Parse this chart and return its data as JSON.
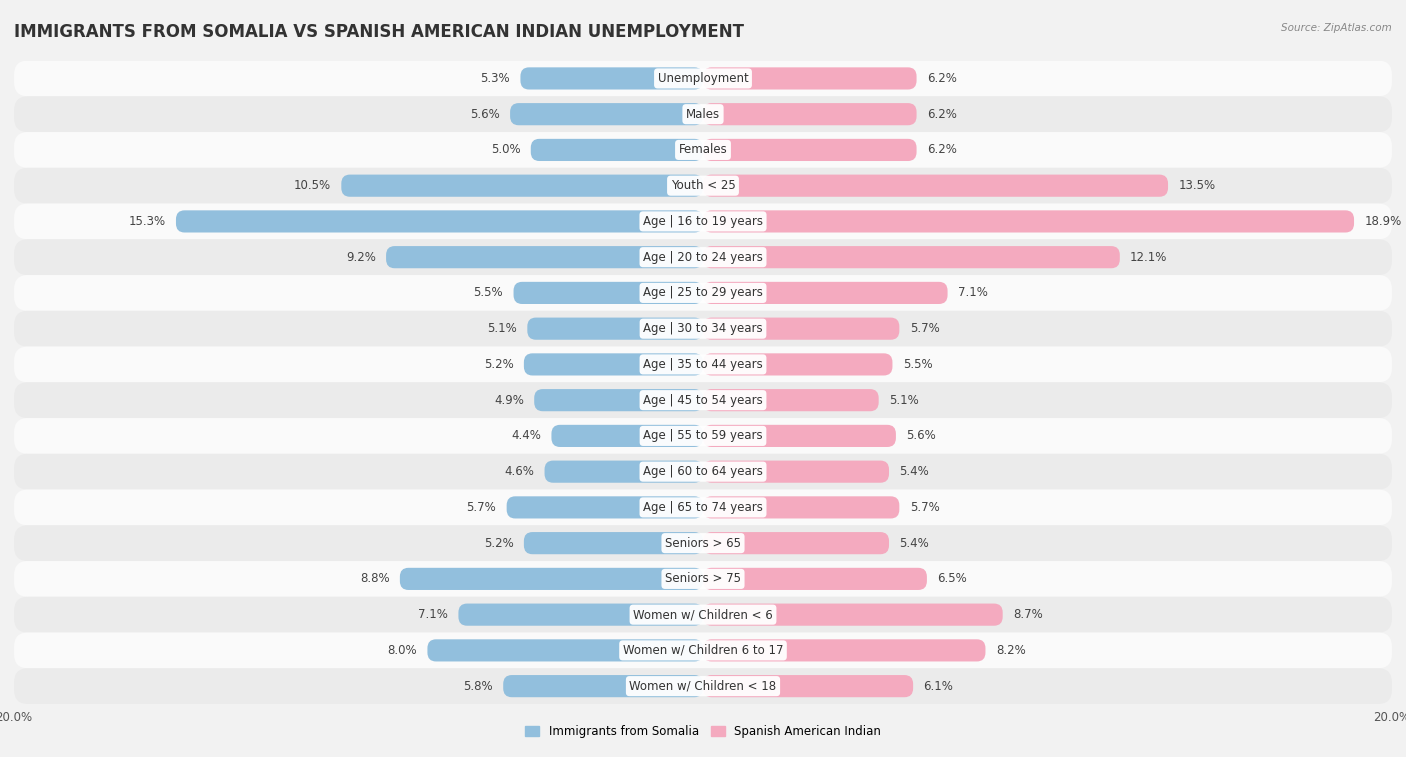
{
  "title": "IMMIGRANTS FROM SOMALIA VS SPANISH AMERICAN INDIAN UNEMPLOYMENT",
  "source": "Source: ZipAtlas.com",
  "categories": [
    "Unemployment",
    "Males",
    "Females",
    "Youth < 25",
    "Age | 16 to 19 years",
    "Age | 20 to 24 years",
    "Age | 25 to 29 years",
    "Age | 30 to 34 years",
    "Age | 35 to 44 years",
    "Age | 45 to 54 years",
    "Age | 55 to 59 years",
    "Age | 60 to 64 years",
    "Age | 65 to 74 years",
    "Seniors > 65",
    "Seniors > 75",
    "Women w/ Children < 6",
    "Women w/ Children 6 to 17",
    "Women w/ Children < 18"
  ],
  "somalia_values": [
    5.3,
    5.6,
    5.0,
    10.5,
    15.3,
    9.2,
    5.5,
    5.1,
    5.2,
    4.9,
    4.4,
    4.6,
    5.7,
    5.2,
    8.8,
    7.1,
    8.0,
    5.8
  ],
  "spanish_values": [
    6.2,
    6.2,
    6.2,
    13.5,
    18.9,
    12.1,
    7.1,
    5.7,
    5.5,
    5.1,
    5.6,
    5.4,
    5.7,
    5.4,
    6.5,
    8.7,
    8.2,
    6.1
  ],
  "somalia_color": "#92bfdd",
  "spanish_color": "#f4aabf",
  "axis_max": 20.0,
  "bar_height": 0.62,
  "background_color": "#f2f2f2",
  "row_bg_light": "#fafafa",
  "row_bg_dark": "#ebebeb",
  "title_fontsize": 12,
  "label_fontsize": 8.5,
  "value_fontsize": 8.5,
  "legend_label_somalia": "Immigrants from Somalia",
  "legend_label_spanish": "Spanish American Indian"
}
